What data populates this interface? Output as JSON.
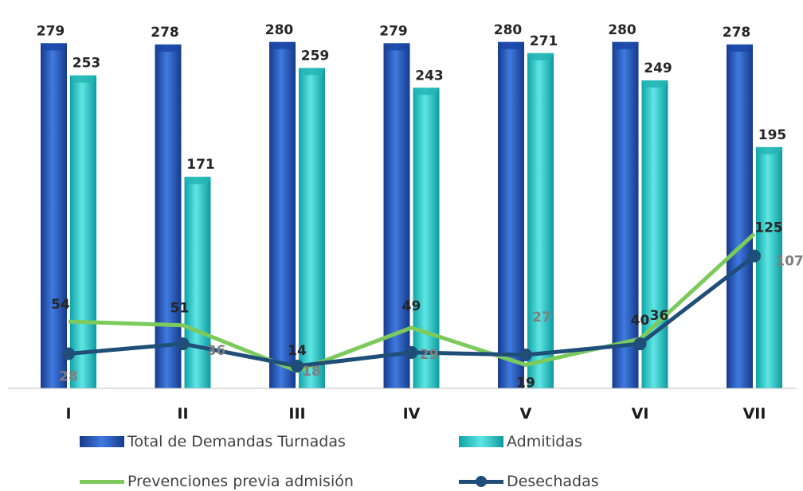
{
  "chart_data": {
    "type": "bar",
    "categories": [
      "I",
      "II",
      "III",
      "IV",
      "V",
      "VI",
      "VII"
    ],
    "series": [
      {
        "name": "Total de Demandas Turnadas",
        "kind": "bar",
        "color": "#2e62c9",
        "values": [
          279,
          278,
          280,
          279,
          280,
          280,
          278
        ]
      },
      {
        "name": "Admitidas",
        "kind": "bar",
        "color": "#2ec9c9",
        "values": [
          253,
          171,
          259,
          243,
          271,
          249,
          195
        ]
      },
      {
        "name": "Prevenciones previa admisión",
        "kind": "line",
        "color": "#7dca5c",
        "values": [
          54,
          51,
          14,
          49,
          19,
          40,
          125
        ]
      },
      {
        "name": "Desechadas",
        "kind": "line",
        "color": "#1f4e79",
        "values": [
          28,
          36,
          18,
          29,
          27,
          36,
          107
        ]
      }
    ],
    "ylim": [
      0,
      285
    ],
    "grid": false,
    "legend_position": "bottom"
  }
}
